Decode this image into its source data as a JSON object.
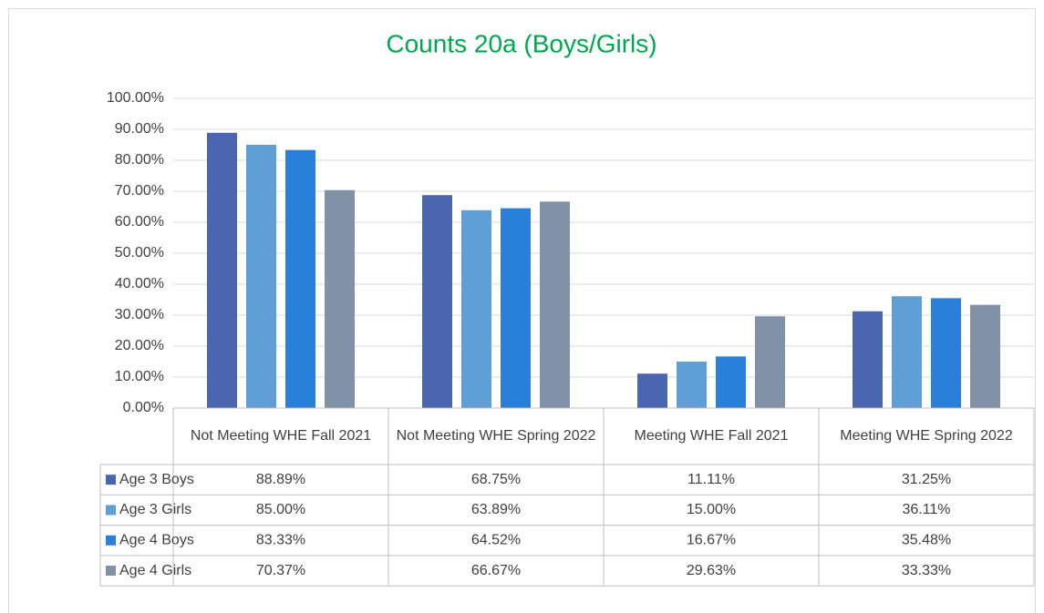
{
  "chart_data": {
    "type": "bar",
    "title": "Counts 20a (Boys/Girls)",
    "categories": [
      "Not Meeting WHE Fall 2021",
      "Not Meeting WHE Spring 2022",
      "Meeting WHE Fall 2021",
      "Meeting WHE Spring 2022"
    ],
    "series": [
      {
        "name": "Age 3 Boys",
        "color": "#4a66b0",
        "values": [
          88.89,
          68.75,
          11.11,
          31.25
        ],
        "value_labels": [
          "88.89%",
          "68.75%",
          "11.11%",
          "31.25%"
        ]
      },
      {
        "name": "Age 3 Girls",
        "color": "#5f9fd5",
        "values": [
          85.0,
          63.89,
          15.0,
          36.11
        ],
        "value_labels": [
          "85.00%",
          "63.89%",
          "15.00%",
          "36.11%"
        ]
      },
      {
        "name": "Age 4 Boys",
        "color": "#2a7fd8",
        "values": [
          83.33,
          64.52,
          16.67,
          35.48
        ],
        "value_labels": [
          "83.33%",
          "64.52%",
          "16.67%",
          "35.48%"
        ]
      },
      {
        "name": "Age 4 Girls",
        "color": "#8191a8",
        "values": [
          70.37,
          66.67,
          29.63,
          33.33
        ],
        "value_labels": [
          "70.37%",
          "66.67%",
          "29.63%",
          "33.33%"
        ]
      }
    ],
    "ylim": [
      0,
      100
    ],
    "yticks": [
      {
        "value": 0,
        "label": "0.00%"
      },
      {
        "value": 10,
        "label": "10.00%"
      },
      {
        "value": 20,
        "label": "20.00%"
      },
      {
        "value": 30,
        "label": "30.00%"
      },
      {
        "value": 40,
        "label": "40.00%"
      },
      {
        "value": 50,
        "label": "50.00%"
      },
      {
        "value": 60,
        "label": "60.00%"
      },
      {
        "value": 70,
        "label": "70.00%"
      },
      {
        "value": 80,
        "label": "80.00%"
      },
      {
        "value": 90,
        "label": "90.00%"
      },
      {
        "value": 100,
        "label": "100.00%"
      }
    ],
    "grid": true,
    "title_color": "#00a84f"
  }
}
